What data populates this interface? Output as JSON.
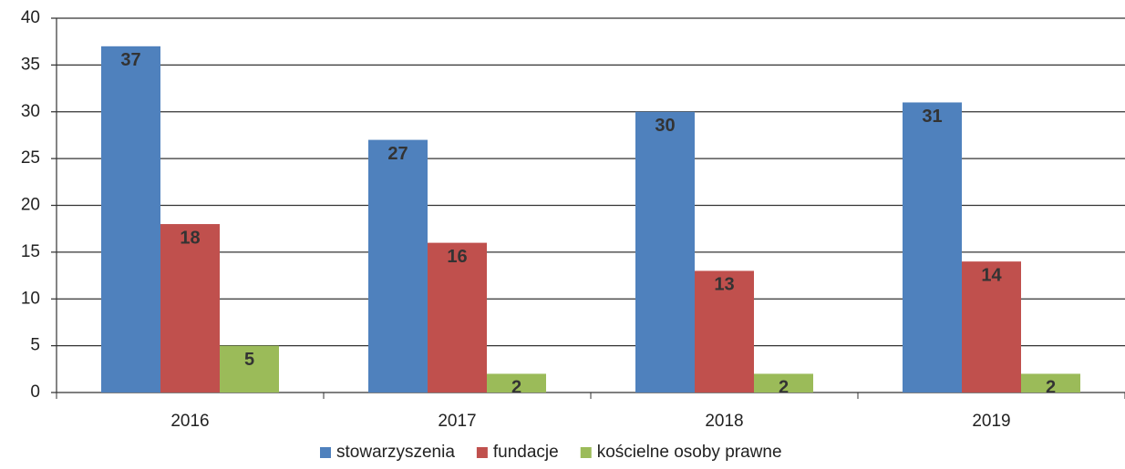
{
  "chart_data": {
    "type": "bar",
    "categories": [
      "2016",
      "2017",
      "2018",
      "2019"
    ],
    "series": [
      {
        "name": "stowarzyszenia",
        "color": "#4f81bd",
        "values": [
          37,
          27,
          30,
          31
        ]
      },
      {
        "name": "fundacje",
        "color": "#c0504d",
        "values": [
          18,
          16,
          13,
          14
        ]
      },
      {
        "name": "kościelne osoby prawne",
        "color": "#9bbb59",
        "values": [
          5,
          2,
          2,
          2
        ]
      }
    ],
    "ylim": [
      0,
      40
    ],
    "yticks": [
      0,
      5,
      10,
      15,
      20,
      25,
      30,
      35,
      40
    ],
    "grid": true,
    "legend": "bottom"
  }
}
